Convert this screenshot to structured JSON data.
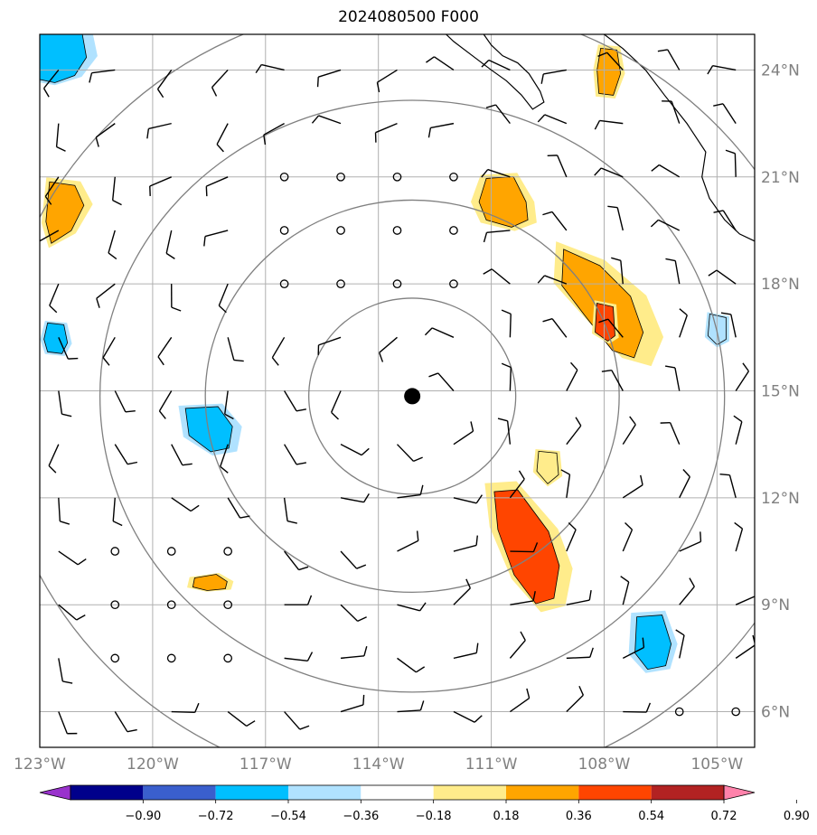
{
  "title": "2024080500 F000",
  "map": {
    "lon_range": [
      -123,
      -104
    ],
    "lat_range": [
      5,
      25
    ],
    "lat_labels": [
      "24°N",
      "21°N",
      "18°N",
      "15°N",
      "12°N",
      "9°N",
      "6°N"
    ],
    "lon_labels": [
      "123°W",
      "120°W",
      "117°W",
      "114°W",
      "111°W",
      "108°W",
      "105°W"
    ],
    "storm_center": {
      "lon": -113.1,
      "lat": 14.85
    },
    "range_rings_deg": [
      2.75,
      5.5,
      8.3,
      11.1
    ],
    "gridline_color": "#b0b0b0",
    "ring_color": "#808080"
  },
  "colorbar": {
    "tick_labels": [
      "−0.90",
      "−0.72",
      "−0.54",
      "−0.36",
      "−0.18",
      "0.18",
      "0.36",
      "0.54",
      "0.72",
      "0.90"
    ],
    "colors": [
      "#9932cc",
      "#00008b",
      "#3a5fcd",
      "#00bfff",
      "#b0e2ff",
      "#ffffff",
      "#ffec8b",
      "#ffa500",
      "#ff4500",
      "#b22222",
      "#ff82ab"
    ]
  },
  "contour_regions": [
    {
      "lon": -122.6,
      "lat": 24.1,
      "level": -0.54
    },
    {
      "lon": -122.5,
      "lat": 20.0,
      "level": 0.54
    },
    {
      "lon": -122.6,
      "lat": 16.5,
      "level": -0.54
    },
    {
      "lon": -118.6,
      "lat": 14.0,
      "level": -0.54
    },
    {
      "lon": -118.5,
      "lat": 9.6,
      "level": 0.54
    },
    {
      "lon": -110.2,
      "lat": 10.6,
      "level": 0.72
    },
    {
      "lon": -110.7,
      "lat": 20.3,
      "level": 0.54
    },
    {
      "lon": -108.5,
      "lat": 17.5,
      "level": 0.54
    },
    {
      "lon": -108.0,
      "lat": 16.9,
      "level": 0.72
    },
    {
      "lon": -107.9,
      "lat": 23.9,
      "level": 0.54
    },
    {
      "lon": -106.7,
      "lat": 7.9,
      "level": -0.54
    },
    {
      "lon": -105.0,
      "lat": 16.8,
      "level": -0.36
    },
    {
      "lon": -109.5,
      "lat": 12.9,
      "level": 0.36
    }
  ]
}
